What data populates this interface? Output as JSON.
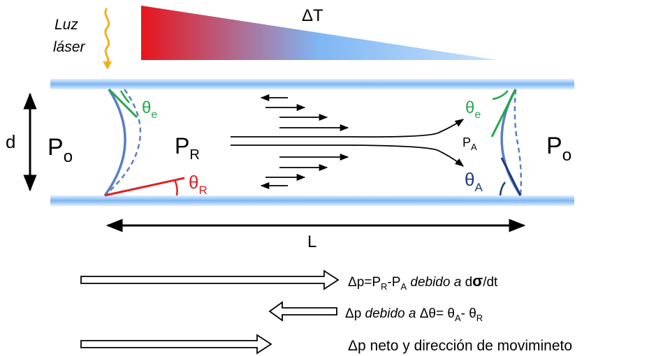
{
  "laser_label": {
    "line1": "Luz",
    "line2": "láser"
  },
  "gradient_label": "ΔT",
  "channel": {
    "d_label": "d",
    "L_label": "L",
    "P_left": {
      "base": "P",
      "sub": "o"
    },
    "P_right": {
      "base": "P",
      "sub": "o"
    },
    "P_R": {
      "base": "P",
      "sub": "R"
    },
    "P_A": {
      "base": "P",
      "sub": "A"
    },
    "theta_e_left": {
      "base": "θ",
      "sub": "e"
    },
    "theta_e_right": {
      "base": "θ",
      "sub": "e"
    },
    "theta_R": {
      "base": "θ",
      "sub": "R"
    },
    "theta_A": {
      "base": "θ",
      "sub": "A"
    }
  },
  "legend": {
    "line1": {
      "a": "Δp=P",
      "sub1": "R",
      "b": "-P",
      "sub2": "A",
      "italic": " debido a ",
      "c": "d",
      "sigma": "σ",
      "d": "/dt"
    },
    "line2": {
      "a": "Δp ",
      "italic": "debido a ",
      "b": "Δθ= θ",
      "sub1": "A",
      "c": "- θ",
      "sub2": "R"
    },
    "line3": "Δp neto y dirección de movimineto"
  },
  "colors": {
    "wall": "#6fa8f0",
    "meniscus": "#5b7fc4",
    "theta_e": "#22a84a",
    "theta_R": "#e02020",
    "theta_A": "#1f3a7a",
    "laser": "#f2b01e",
    "gradient_hot": "#e8141c",
    "gradient_cold": "#a8d4f8"
  }
}
